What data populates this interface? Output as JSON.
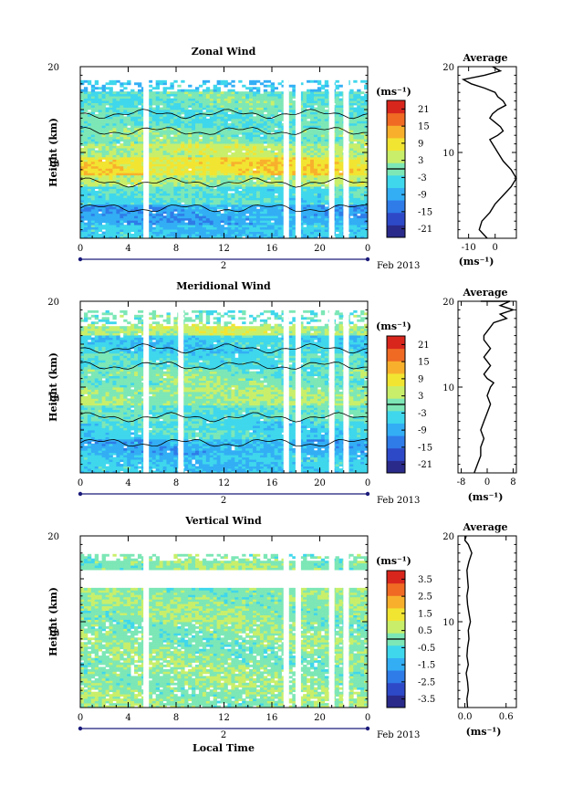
{
  "chart_data": [
    {
      "type": "heatmap",
      "title": "Zonal Wind",
      "ylabel": "Height (km)",
      "ylim": [
        0,
        20
      ],
      "yticks": [
        "10",
        "20"
      ],
      "xlim": [
        0,
        24
      ],
      "xticks": [
        "0",
        "4",
        "8",
        "12",
        "16",
        "20",
        "0"
      ],
      "date_marker": "2",
      "date_label": "Feb 2013",
      "colorbar": {
        "unit": "(ms⁻¹)",
        "ticks": [
          "21",
          "15",
          "9",
          "3",
          "-3",
          "-9",
          "-15",
          "-21"
        ],
        "min": -24,
        "max": 24
      },
      "gaps_hours": [
        5.5,
        17.2,
        18.2,
        21.0,
        22.2
      ],
      "bands": [
        {
          "z0": 0,
          "z1": 1.5,
          "v": -6
        },
        {
          "z0": 1.5,
          "z1": 4,
          "v": -9
        },
        {
          "z0": 4,
          "z1": 6,
          "v": -3
        },
        {
          "z0": 6,
          "z1": 7.5,
          "v": 3
        },
        {
          "z0": 7.5,
          "z1": 9.5,
          "v": 9
        },
        {
          "z0": 9.5,
          "z1": 11,
          "v": 4
        },
        {
          "z0": 11,
          "z1": 13,
          "v": 0
        },
        {
          "z0": 13,
          "z1": 15,
          "v": -2
        },
        {
          "z0": 15,
          "z1": 17,
          "v": -1
        },
        {
          "z0": 17,
          "z1": 18.5,
          "v": -6
        }
      ],
      "average": {
        "title": "Average",
        "xlabel": "(ms⁻¹)",
        "xlim": [
          -14,
          8
        ],
        "xticks": [
          "-10",
          "0"
        ],
        "x": [
          -3,
          -6,
          -5,
          -2,
          0,
          3,
          6,
          8,
          6,
          3,
          1,
          0,
          -1,
          -2,
          1,
          3,
          2,
          0,
          -2,
          -1,
          1,
          4,
          3,
          1,
          0,
          -4,
          -9,
          -12,
          -4,
          2,
          -1
        ],
        "y": [
          0,
          1,
          2,
          3,
          4,
          5,
          6,
          7,
          8,
          9,
          10,
          10.5,
          11,
          11.5,
          12,
          12.5,
          13,
          13.5,
          14,
          14.5,
          15,
          15.5,
          16,
          16.5,
          17,
          17.5,
          18,
          18.5,
          19,
          19.5,
          20
        ]
      }
    },
    {
      "type": "heatmap",
      "title": "Meridional Wind",
      "ylabel": "Height (km)",
      "ylim": [
        0,
        20
      ],
      "yticks": [
        "10",
        "20"
      ],
      "xlim": [
        0,
        24
      ],
      "xticks": [
        "0",
        "4",
        "8",
        "12",
        "16",
        "20",
        "0"
      ],
      "date_marker": "2",
      "date_label": "Feb 2013",
      "colorbar": {
        "unit": "(ms⁻¹)",
        "ticks": [
          "21",
          "15",
          "9",
          "3",
          "-3",
          "-9",
          "-15",
          "-21"
        ],
        "min": -24,
        "max": 24
      },
      "gaps_hours": [
        5.5,
        8.4,
        17.2,
        18.2,
        21.0,
        22.2
      ],
      "bands": [
        {
          "z0": 0,
          "z1": 2,
          "v": -6
        },
        {
          "z0": 2,
          "z1": 4,
          "v": -8
        },
        {
          "z0": 4,
          "z1": 6,
          "v": -4
        },
        {
          "z0": 6,
          "z1": 8,
          "v": -2
        },
        {
          "z0": 8,
          "z1": 10,
          "v": 2
        },
        {
          "z0": 10,
          "z1": 12,
          "v": 0
        },
        {
          "z0": 12,
          "z1": 14,
          "v": -3
        },
        {
          "z0": 14,
          "z1": 16,
          "v": -5
        },
        {
          "z0": 16,
          "z1": 17.5,
          "v": 4
        },
        {
          "z0": 17.5,
          "z1": 19,
          "v": -1
        }
      ],
      "average": {
        "title": "Average",
        "xlabel": "(ms⁻¹)",
        "xlim": [
          -9,
          9
        ],
        "xticks": [
          "-8",
          "0",
          "8"
        ],
        "x": [
          -4,
          -3,
          -2,
          -2,
          -1,
          -2,
          -1,
          0,
          1,
          0,
          1,
          2,
          0,
          -1,
          0,
          1,
          0,
          -1,
          0,
          1,
          0,
          -1,
          -1,
          0,
          1,
          2,
          6,
          4,
          8,
          4,
          7,
          -2
        ],
        "y": [
          0,
          1,
          2,
          3,
          4,
          5,
          6,
          7,
          8,
          9,
          10,
          10.5,
          11,
          11.5,
          12,
          12.5,
          13,
          13.5,
          14,
          14.5,
          15,
          15.5,
          16,
          16.5,
          17,
          17.5,
          18,
          18.5,
          19,
          19.5,
          20,
          20
        ]
      }
    },
    {
      "type": "heatmap",
      "title": "Vertical Wind",
      "ylabel": "Height (km)",
      "ylim": [
        0,
        20
      ],
      "yticks": [
        "10",
        "20"
      ],
      "xlim": [
        0,
        24
      ],
      "xticks": [
        "0",
        "4",
        "8",
        "12",
        "16",
        "20",
        "0"
      ],
      "xlabel": "Local Time",
      "date_marker": "2",
      "date_label": "Feb 2013",
      "colorbar": {
        "unit": "(ms⁻¹)",
        "ticks": [
          "3.5",
          "2.5",
          "1.5",
          "0.5",
          "-0.5",
          "-1.5",
          "-2.5",
          "-3.5"
        ],
        "min": -4,
        "max": 4
      },
      "gaps_hours": [
        5.5,
        17.2,
        18.2,
        21.0,
        22.2
      ],
      "bands": [
        {
          "z0": 0,
          "z1": 5,
          "v": 0.2
        },
        {
          "z0": 5,
          "z1": 10,
          "v": 0.1
        },
        {
          "z0": 10,
          "z1": 13,
          "v": 0.2
        },
        {
          "z0": 13,
          "z1": 15,
          "v": 0.1
        },
        {
          "z0": 15,
          "z1": 18,
          "v": 0.15
        }
      ],
      "average": {
        "title": "Average",
        "xlabel": "(ms⁻¹)",
        "xlim": [
          -0.1,
          0.75
        ],
        "xticks": [
          "0.0",
          "0.6"
        ],
        "x": [
          0.04,
          0.03,
          0.05,
          0.04,
          0.02,
          0.05,
          0.03,
          0.04,
          0.06,
          0.05,
          0.08,
          0.06,
          0.04,
          0.03,
          0.05,
          0.04,
          0.03,
          0.06,
          0.1,
          0.05,
          0.0,
          0.02
        ],
        "y": [
          0,
          1,
          2,
          3,
          4,
          5,
          6,
          7,
          8,
          9,
          10,
          11,
          12,
          13,
          14,
          15,
          16,
          17,
          18,
          19,
          19.5,
          20
        ]
      }
    }
  ]
}
